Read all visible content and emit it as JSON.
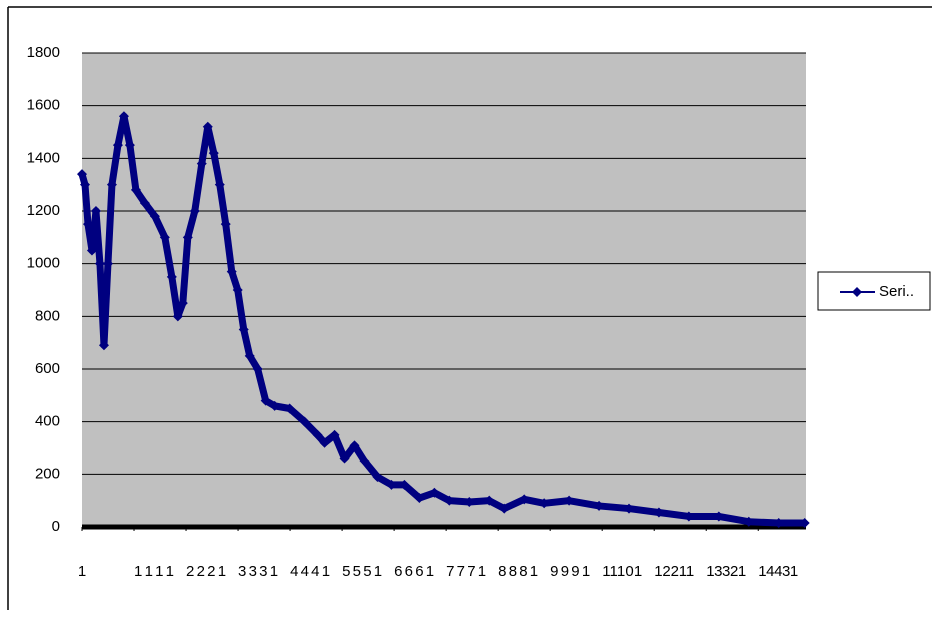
{
  "chart_data": {
    "type": "line",
    "x": [
      1,
      65,
      129,
      214,
      299,
      384,
      470,
      555,
      640,
      768,
      896,
      1023,
      1151,
      1343,
      1556,
      1769,
      1918,
      2046,
      2152,
      2259,
      2408,
      2557,
      2685,
      2813,
      2941,
      3068,
      3196,
      3324,
      3452,
      3579,
      3750,
      3920,
      4112,
      4432,
      4751,
      5028,
      5177,
      5390,
      5603,
      5816,
      6029,
      6306,
      6604,
      6881,
      7200,
      7520,
      7839,
      8265,
      8691,
      9011,
      9437,
      9863,
      10395,
      11034,
      11673,
      12312,
      12951,
      13590,
      14229,
      14868,
      15422
    ],
    "series": [
      {
        "name": "Seri..",
        "color": "#000080",
        "values": [
          1340,
          1300,
          1150,
          1050,
          1200,
          1000,
          690,
          1000,
          1300,
          1450,
          1560,
          1450,
          1280,
          1230,
          1180,
          1100,
          950,
          800,
          850,
          1100,
          1200,
          1380,
          1520,
          1420,
          1300,
          1150,
          970,
          900,
          750,
          650,
          600,
          480,
          460,
          450,
          400,
          350,
          320,
          350,
          260,
          310,
          250,
          190,
          160,
          160,
          110,
          130,
          100,
          95,
          100,
          70,
          105,
          90,
          100,
          80,
          70,
          55,
          40,
          40,
          20,
          15,
          15
        ]
      }
    ],
    "xlim": [
      1,
      15450
    ],
    "xticks": [
      1,
      1111,
      2221,
      3331,
      4441,
      5551,
      6661,
      7771,
      8881,
      9991,
      11101,
      12211,
      13321,
      14431
    ],
    "ylim": [
      0,
      1800
    ],
    "yticks": [
      0,
      200,
      400,
      600,
      800,
      1000,
      1200,
      1400,
      1600,
      1800
    ],
    "grid": true,
    "legend": "right"
  }
}
